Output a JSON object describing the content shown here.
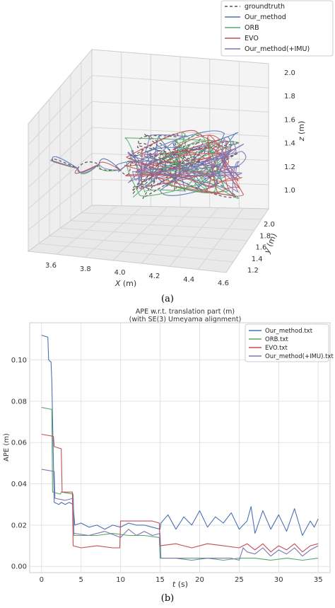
{
  "colors": {
    "groundtruth": "#555555",
    "our_method": "#4c72b0",
    "orb": "#55a868",
    "evo": "#c44e52",
    "our_method_imu": "#8172b3"
  },
  "captions": {
    "a": "(a)",
    "b": "(b)"
  },
  "chart_data": [
    {
      "type": "line",
      "projection": "3d",
      "legend": [
        "groundtruth",
        "Our_method",
        "ORB",
        "EVO",
        "Our_method(+IMU)"
      ],
      "legend_position": "top-right",
      "xlabel": "X (m)",
      "ylabel": "y (m)",
      "zlabel": "z (m)",
      "xlabel_var": "X",
      "ylabel_var": "y",
      "zlabel_var": "z",
      "unit": " (m)",
      "xticks": [
        "3.6",
        "3.8",
        "4.0",
        "4.2",
        "4.4",
        "4.6"
      ],
      "yticks": [
        "1.2",
        "1.4",
        "1.6",
        "1.8",
        "2.0"
      ],
      "zticks": [
        "1.0",
        "1.2",
        "1.4",
        "1.6",
        "1.8",
        "2.0"
      ],
      "xlim": [
        3.5,
        4.65
      ],
      "ylim": [
        1.1,
        2.15
      ],
      "zlim": [
        0.9,
        2.1
      ],
      "grid": true
    },
    {
      "type": "line",
      "title_line1": "APE w.r.t. translation part (m)",
      "title_line2": "(with SE(3) Umeyama alignment)",
      "xlabel_var": "t",
      "xlabel_unit": " (s)",
      "ylabel": "APE (m)",
      "xlim": [
        -1.5,
        36.5
      ],
      "ylim": [
        -0.003,
        0.118
      ],
      "xticks": [
        "0",
        "5",
        "10",
        "15",
        "20",
        "25",
        "30",
        "35"
      ],
      "yticks": [
        "0.00",
        "0.02",
        "0.04",
        "0.06",
        "0.08",
        "0.10"
      ],
      "grid": true,
      "legend_position": "top-right",
      "series": [
        {
          "name": "Our_method.txt",
          "color_key": "our_method",
          "x": [
            0,
            0.8,
            0.9,
            1.2,
            1.3,
            1.6,
            2.2,
            2.5,
            3.0,
            3.5,
            4.0,
            4.2,
            5,
            6,
            7,
            8,
            9,
            10,
            11,
            12,
            13,
            14,
            15,
            15.1,
            16,
            17,
            18,
            19,
            20,
            21,
            22,
            23,
            24,
            25,
            26,
            26.5,
            27,
            28,
            29,
            30,
            31,
            32,
            33,
            34,
            34.5,
            35
          ],
          "y": [
            0.112,
            0.111,
            0.1,
            0.099,
            0.09,
            0.031,
            0.03,
            0.031,
            0.03,
            0.031,
            0.03,
            0.02,
            0.021,
            0.019,
            0.02,
            0.018,
            0.02,
            0.019,
            0.021,
            0.02,
            0.02,
            0.019,
            0.018,
            0.021,
            0.025,
            0.018,
            0.024,
            0.02,
            0.027,
            0.019,
            0.024,
            0.021,
            0.026,
            0.018,
            0.022,
            0.029,
            0.016,
            0.027,
            0.018,
            0.025,
            0.017,
            0.028,
            0.015,
            0.022,
            0.019,
            0.023
          ]
        },
        {
          "name": "ORB.txt",
          "color_key": "orb",
          "x": [
            0,
            1.3,
            1.4,
            2.4,
            2.5,
            4.0,
            4.1,
            5,
            7,
            9,
            11,
            13,
            14.9,
            15.0,
            17,
            19,
            21,
            23,
            25,
            27,
            29,
            31,
            33,
            35
          ],
          "y": [
            0.077,
            0.076,
            0.036,
            0.035,
            0.036,
            0.035,
            0.015,
            0.015,
            0.015,
            0.016,
            0.015,
            0.015,
            0.014,
            0.004,
            0.004,
            0.004,
            0.004,
            0.003,
            0.004,
            0.004,
            0.003,
            0.004,
            0.003,
            0.004
          ]
        },
        {
          "name": "EVO.txt",
          "color_key": "evo",
          "x": [
            0,
            1.5,
            1.6,
            2.5,
            2.6,
            3.9,
            4.0,
            5,
            7,
            9,
            9.9,
            10.0,
            12,
            14,
            14.9,
            15.0,
            17,
            19,
            21,
            23,
            25,
            26,
            27,
            28,
            29,
            30,
            31,
            32,
            33,
            34,
            35
          ],
          "y": [
            0.064,
            0.063,
            0.058,
            0.057,
            0.036,
            0.036,
            0.01,
            0.009,
            0.01,
            0.009,
            0.009,
            0.022,
            0.022,
            0.022,
            0.021,
            0.01,
            0.011,
            0.009,
            0.011,
            0.01,
            0.009,
            0.011,
            0.008,
            0.011,
            0.007,
            0.01,
            0.008,
            0.011,
            0.007,
            0.01,
            0.011
          ]
        },
        {
          "name": "Our_method(+IMU).txt",
          "color_key": "our_method_imu",
          "x": [
            0,
            1.6,
            1.7,
            3.0,
            4.0,
            4.1,
            6,
            8,
            10,
            11,
            12,
            13,
            14,
            15,
            15.1,
            17,
            19,
            21,
            23,
            24,
            25,
            25.5,
            26,
            27,
            28,
            29,
            30,
            31,
            32,
            33,
            34,
            35
          ],
          "y": [
            0.047,
            0.046,
            0.033,
            0.032,
            0.033,
            0.016,
            0.015,
            0.017,
            0.014,
            0.018,
            0.015,
            0.017,
            0.015,
            0.016,
            0.004,
            0.004,
            0.003,
            0.004,
            0.004,
            0.004,
            0.003,
            0.009,
            0.007,
            0.006,
            0.009,
            0.005,
            0.008,
            0.006,
            0.009,
            0.005,
            0.008,
            0.01
          ]
        }
      ]
    }
  ]
}
